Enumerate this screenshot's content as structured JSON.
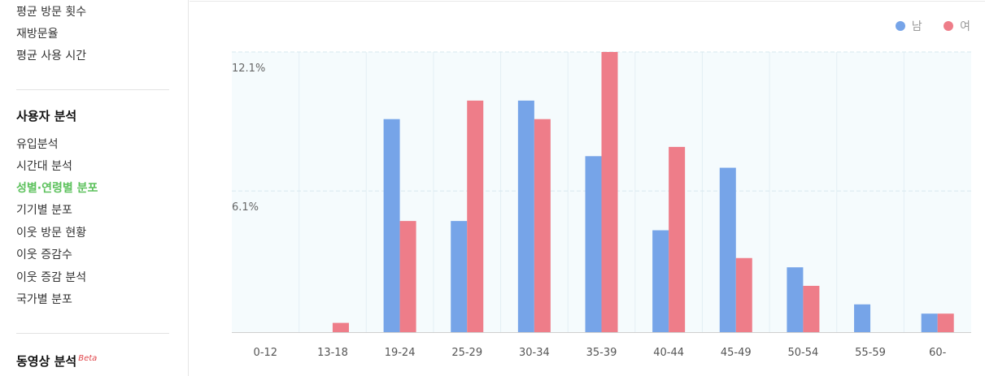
{
  "sidebar": {
    "top_items": [
      "평균 방문 횟수",
      "재방문율",
      "평균 사용 시간"
    ],
    "section_user": {
      "title": "사용자 분석",
      "items": [
        "유입분석",
        "시간대 분석",
        "성별·연령별 분포",
        "기기별 분포",
        "이웃 방문 현황",
        "이웃 증감수",
        "이웃 증감 분석",
        "국가별 분포"
      ]
    },
    "section_video": {
      "title": "동영상 분석",
      "badge": "Beta"
    }
  },
  "colors": {
    "male": "#76a4e8",
    "female": "#ee7d89",
    "active_nav": "#5cc15c"
  },
  "chart_data": {
    "type": "bar",
    "categories": [
      "0-12",
      "13-18",
      "19-24",
      "25-29",
      "30-34",
      "35-39",
      "40-44",
      "45-49",
      "50-54",
      "55-59",
      "60-"
    ],
    "series": [
      {
        "name": "남",
        "color": "#76a4e8",
        "values": [
          0,
          0,
          9.2,
          4.8,
          10.0,
          7.6,
          4.4,
          7.1,
          2.8,
          1.2,
          0.8
        ]
      },
      {
        "name": "여",
        "color": "#ee7d89",
        "values": [
          0,
          0.4,
          4.8,
          10.0,
          9.2,
          12.1,
          8.0,
          3.2,
          2.0,
          0,
          0.8
        ]
      }
    ],
    "y_ticks": [
      {
        "value": 6.1,
        "label": "6.1%"
      },
      {
        "value": 12.1,
        "label": "12.1%"
      }
    ],
    "ylim": [
      0,
      12.1
    ],
    "legend_position": "top-right",
    "grid": true
  }
}
